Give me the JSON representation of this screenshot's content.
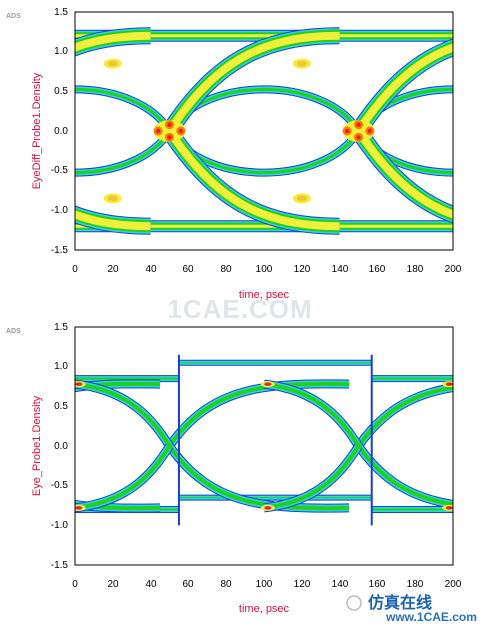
{
  "chart_data": [
    {
      "type": "heatmap",
      "ads_label": "ADS",
      "xlabel": "time, psec",
      "ylabel": "EyeDiff_Probe1.Density",
      "xlim": [
        0,
        200
      ],
      "ylim": [
        -1.5,
        1.5
      ],
      "xticks": [
        "0",
        "20",
        "40",
        "60",
        "80",
        "100",
        "120",
        "140",
        "160",
        "180",
        "200"
      ],
      "yticks": [
        "1.5",
        "1.0",
        "0.5",
        "0.0",
        "-0.5",
        "-1.0",
        "-1.5"
      ],
      "levels": {
        "high": 1.2,
        "low": -1.2,
        "inner_high": 0.7,
        "inner_low": -0.7,
        "crossings_ps": [
          50,
          150
        ]
      },
      "colors": [
        "#1a3cd6",
        "#2fd7d7",
        "#20d020",
        "#f0f03a",
        "#ff7a00",
        "#e82020"
      ]
    },
    {
      "type": "heatmap",
      "ads_label": "ADS",
      "xlabel": "time, psec",
      "ylabel": "Eye_Probe1.Density",
      "xlim": [
        0,
        200
      ],
      "ylim": [
        -1.5,
        1.5
      ],
      "xticks": [
        "0",
        "20",
        "40",
        "60",
        "80",
        "100",
        "120",
        "140",
        "160",
        "180",
        "200"
      ],
      "yticks": [
        "1.5",
        "1.0",
        "0.5",
        "0.0",
        "-0.5",
        "-1.0",
        "-1.5"
      ],
      "levels": {
        "high": 0.85,
        "low": -0.8,
        "crossings_ps": [
          50,
          150
        ],
        "steps_ps": [
          55,
          157
        ]
      },
      "colors": [
        "#1a3cd6",
        "#2fd7d7",
        "#20d020",
        "#f0f03a",
        "#ff7a00",
        "#e82020"
      ]
    }
  ],
  "watermark": "1CAE.COM",
  "brand_text": "仿真在线",
  "site_text": "www.1CAE.com"
}
